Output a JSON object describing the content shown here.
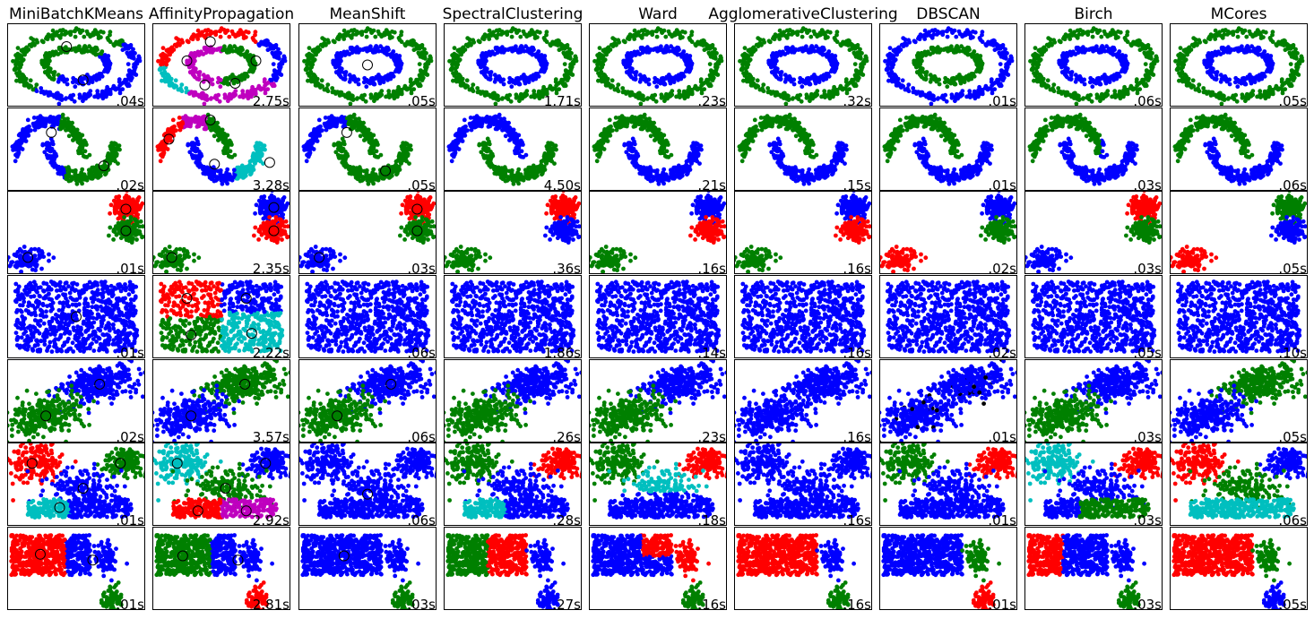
{
  "chart_data": {
    "type": "scatter",
    "grid": false,
    "algorithms": [
      "MiniBatchKMeans",
      "AffinityPropagation",
      "MeanShift",
      "SpectralClustering",
      "Ward",
      "AgglomerativeClustering",
      "DBSCAN",
      "Birch",
      "MCores"
    ],
    "datasets": [
      "noisy_circles",
      "noisy_moons",
      "varied_blobs",
      "no_structure",
      "aniso_blobs",
      "blobs",
      "rect_and_blobs"
    ],
    "colors": {
      "blue": "#0000ff",
      "green": "#008000",
      "red": "#ff0000",
      "cyan": "#00bfbf",
      "magenta": "#bf00bf",
      "black": "#000000"
    },
    "times": [
      [
        ".04s",
        "2.75s",
        ".05s",
        "1.71s",
        ".23s",
        ".32s",
        ".01s",
        ".06s",
        ".05s"
      ],
      [
        ".02s",
        "3.28s",
        ".05s",
        "4.50s",
        ".21s",
        ".15s",
        ".01s",
        ".03s",
        ".06s"
      ],
      [
        ".01s",
        "2.35s",
        ".03s",
        ".36s",
        ".16s",
        ".16s",
        ".02s",
        ".03s",
        ".05s"
      ],
      [
        ".01s",
        "2.22s",
        ".06s",
        "1.86s",
        ".14s",
        ".16s",
        ".02s",
        ".05s",
        ".10s"
      ],
      [
        ".02s",
        "3.57s",
        ".06s",
        ".26s",
        ".23s",
        ".16s",
        ".01s",
        ".03s",
        ".05s"
      ],
      [
        ".01s",
        "2.92s",
        ".06s",
        ".28s",
        ".18s",
        ".16s",
        ".01s",
        ".03s",
        ".06s"
      ],
      [
        ".01s",
        "2.81s",
        ".03s",
        ".27s",
        ".16s",
        ".16s",
        ".01s",
        ".03s",
        ".05s"
      ]
    ]
  }
}
